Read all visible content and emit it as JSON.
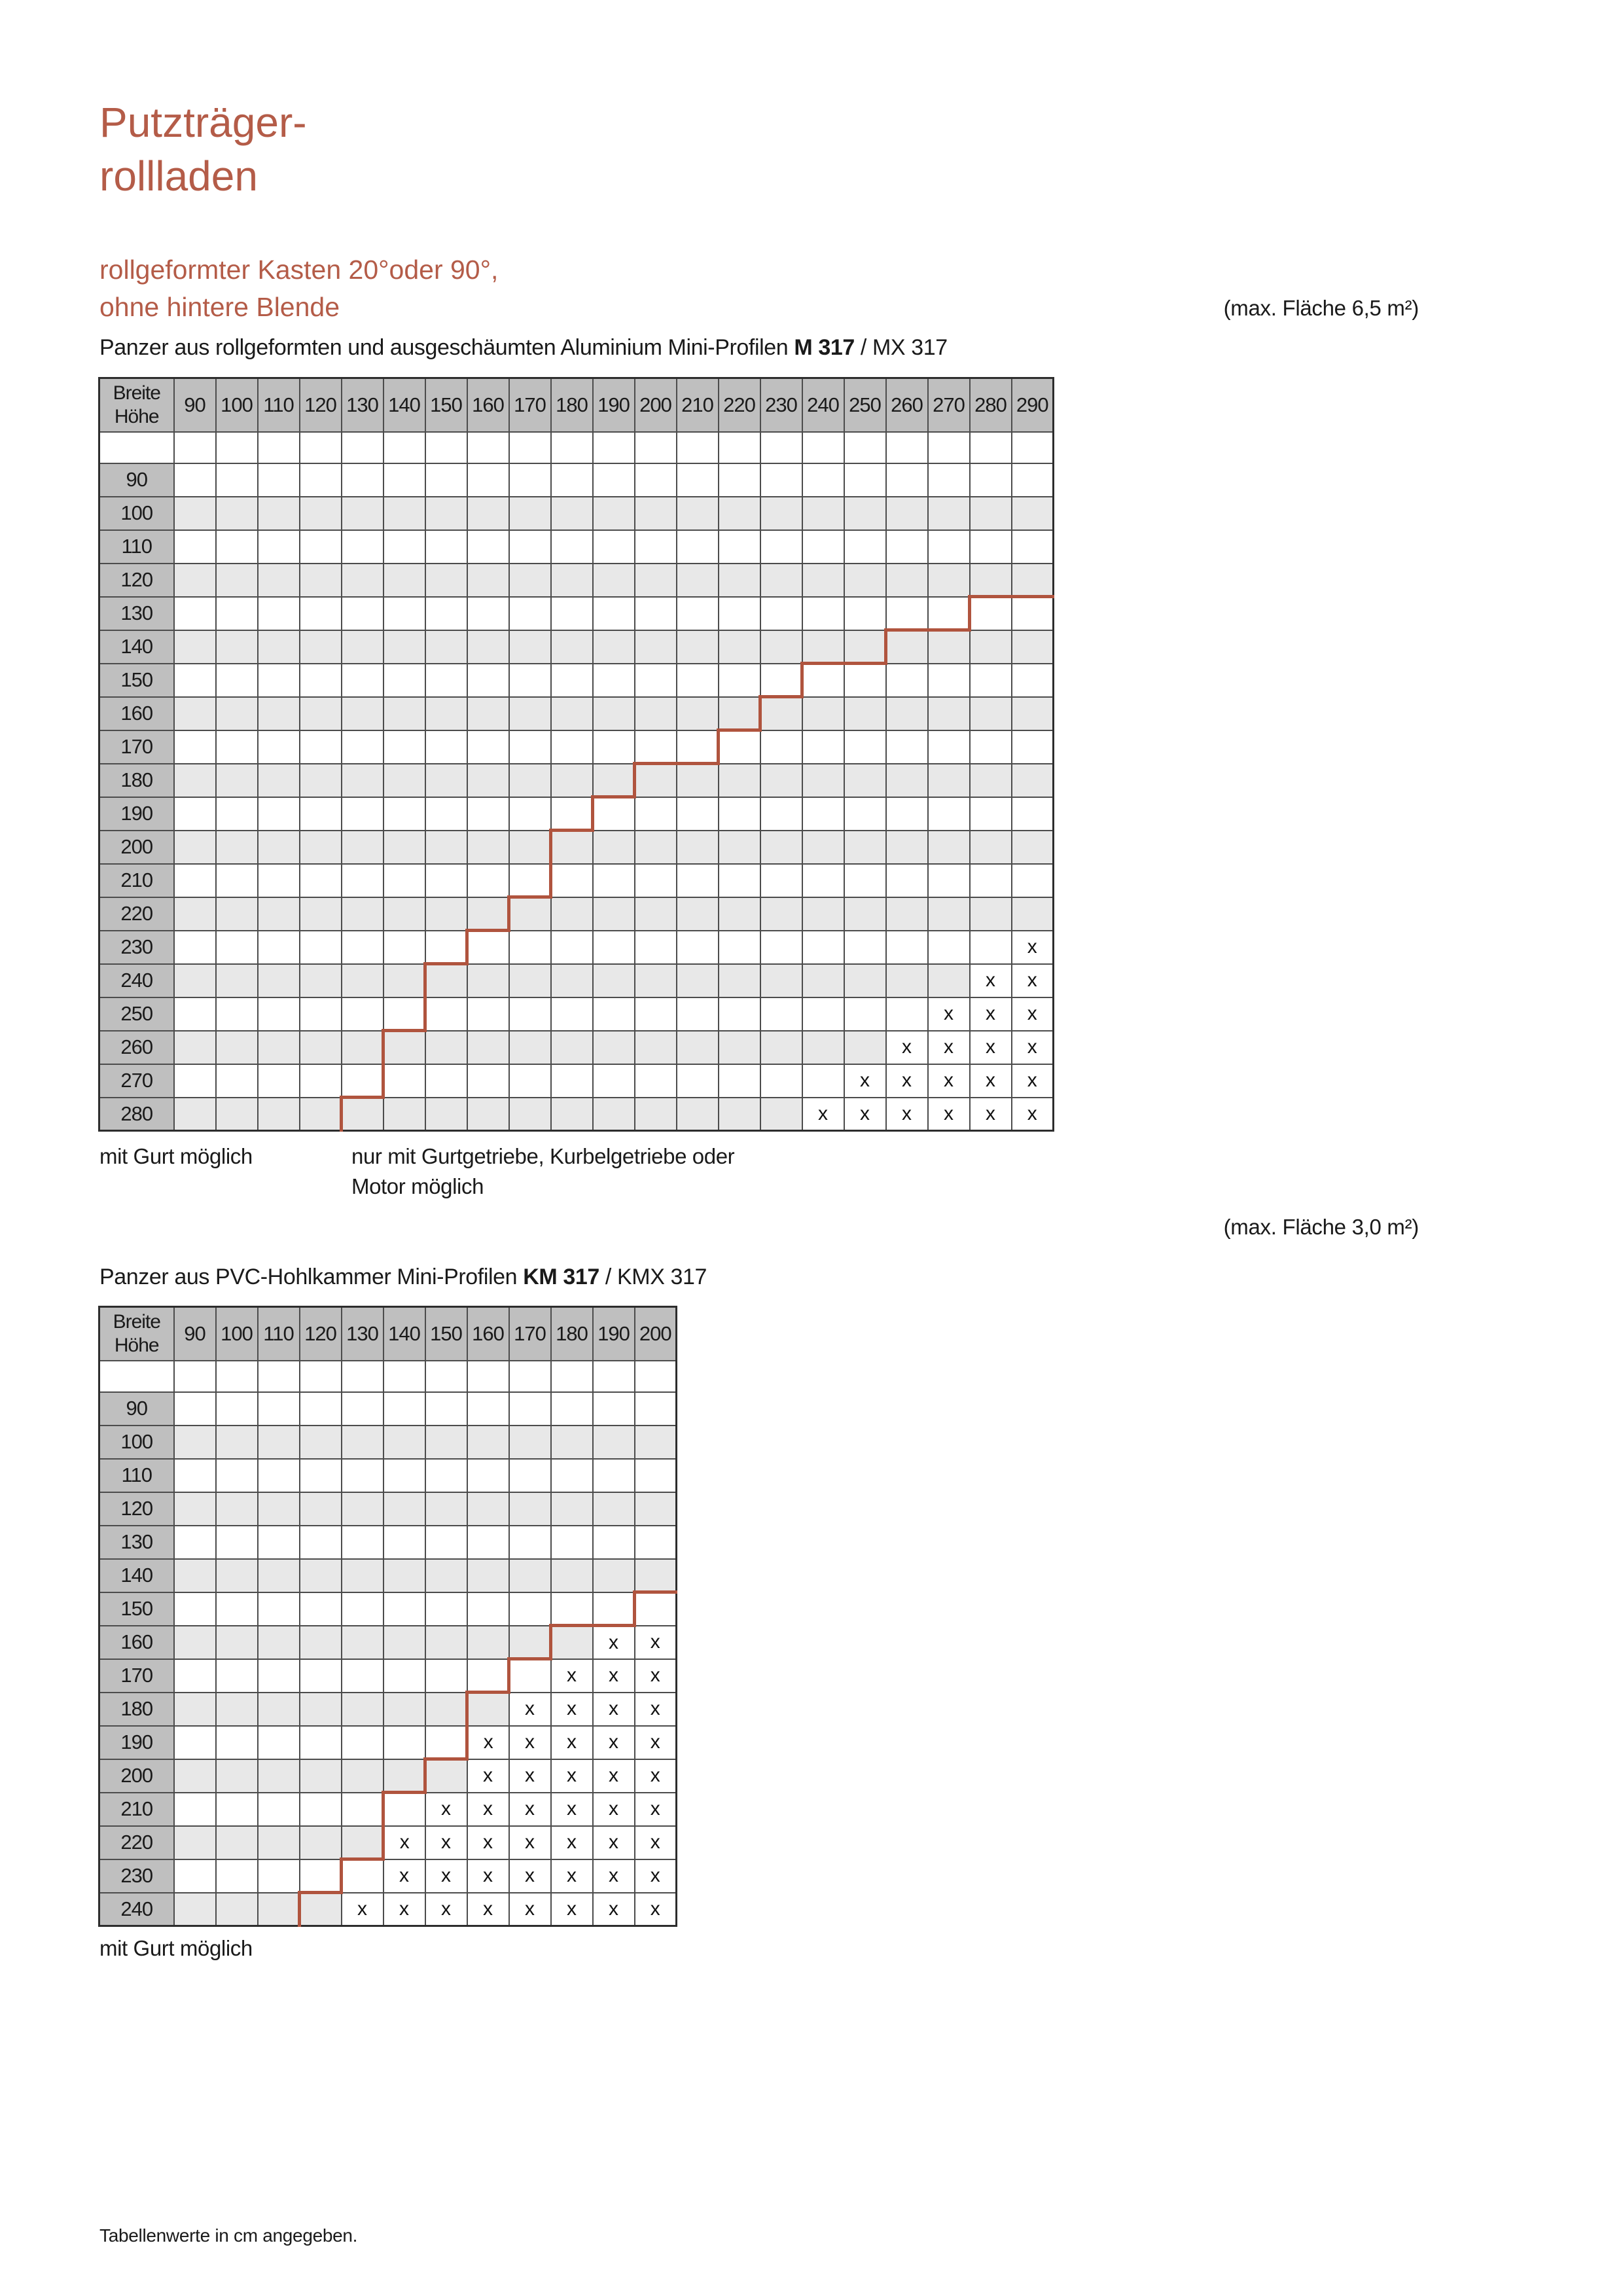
{
  "page": {
    "title_line1": "Putzträger-",
    "title_line2": "rollladen",
    "subtitle_line1": "rollgeformter Kasten 20°oder 90°,",
    "subtitle_line2": "ohne hintere Blende",
    "footer_note": "Tabellenwerte in cm angegeben."
  },
  "colors": {
    "title_red": "#b45c48",
    "line_red": "#b0543e",
    "header_gray": "#bfbfbf",
    "alt_row_gray": "#e8e8e8"
  },
  "table_aluminium": {
    "area_note": "(max. Fläche 6,5 m²)",
    "heading_prefix": "Panzer aus rollgeformten und ausgeschäumten Aluminium Mini-Profilen ",
    "heading_model_bold": "M 317",
    "heading_separator": " / ",
    "heading_model_alt": "MX 317",
    "corner_top": "Breite",
    "corner_bottom": "Höhe",
    "x_char": "x",
    "columns": [
      90,
      100,
      110,
      120,
      130,
      140,
      150,
      160,
      170,
      180,
      190,
      200,
      210,
      220,
      230,
      240,
      250,
      260,
      270,
      280,
      290
    ],
    "rows": [
      90,
      100,
      110,
      120,
      130,
      140,
      150,
      160,
      170,
      180,
      190,
      200,
      210,
      220,
      230,
      240,
      250,
      260,
      270,
      280
    ],
    "gurt_boundary": {
      "130": 270,
      "140": 250,
      "150": 230,
      "160": 220,
      "170": 210,
      "180": 190,
      "190": 180,
      "200": 170,
      "210": 170,
      "220": 160,
      "230": 150,
      "240": 140,
      "250": 140,
      "260": 130,
      "270": 130,
      "280": 120
    },
    "x_marks": {
      "230": [
        290
      ],
      "240": [
        280,
        290
      ],
      "250": [
        270,
        280,
        290
      ],
      "260": [
        260,
        270,
        280,
        290
      ],
      "270": [
        250,
        260,
        270,
        280,
        290
      ],
      "280": [
        240,
        250,
        260,
        270,
        280,
        290
      ]
    },
    "legend_gurt": "mit Gurt möglich",
    "legend_getriebe_line1": "nur mit Gurtgetriebe, Kurbelgetriebe oder",
    "legend_getriebe_line2": "Motor möglich"
  },
  "table_pvc": {
    "area_note": "(max. Fläche 3,0 m²)",
    "heading_prefix": "Panzer aus PVC-Hohlkammer Mini-Profilen ",
    "heading_model_bold": "KM 317",
    "heading_separator": " / ",
    "heading_model_alt": "KMX 317",
    "corner_top": "Breite",
    "corner_bottom": "Höhe",
    "x_char": "x",
    "columns": [
      90,
      100,
      110,
      120,
      130,
      140,
      150,
      160,
      170,
      180,
      190,
      200
    ],
    "rows": [
      90,
      100,
      110,
      120,
      130,
      140,
      150,
      160,
      170,
      180,
      190,
      200,
      210,
      220,
      230,
      240
    ],
    "gurt_boundary": {
      "150": 190,
      "160": 170,
      "170": 160,
      "180": 150,
      "190": 150,
      "200": 140,
      "210": 130,
      "220": 130,
      "230": 120,
      "240": 110
    },
    "x_marks": {
      "160": [
        190,
        200
      ],
      "170": [
        180,
        190,
        200
      ],
      "180": [
        170,
        180,
        190,
        200
      ],
      "190": [
        160,
        170,
        180,
        190,
        200
      ],
      "200": [
        160,
        170,
        180,
        190,
        200
      ],
      "210": [
        150,
        160,
        170,
        180,
        190,
        200
      ],
      "220": [
        140,
        150,
        160,
        170,
        180,
        190,
        200
      ],
      "230": [
        140,
        150,
        160,
        170,
        180,
        190,
        200
      ],
      "240": [
        130,
        140,
        150,
        160,
        170,
        180,
        190,
        200
      ]
    },
    "legend_gurt": "mit Gurt möglich"
  }
}
